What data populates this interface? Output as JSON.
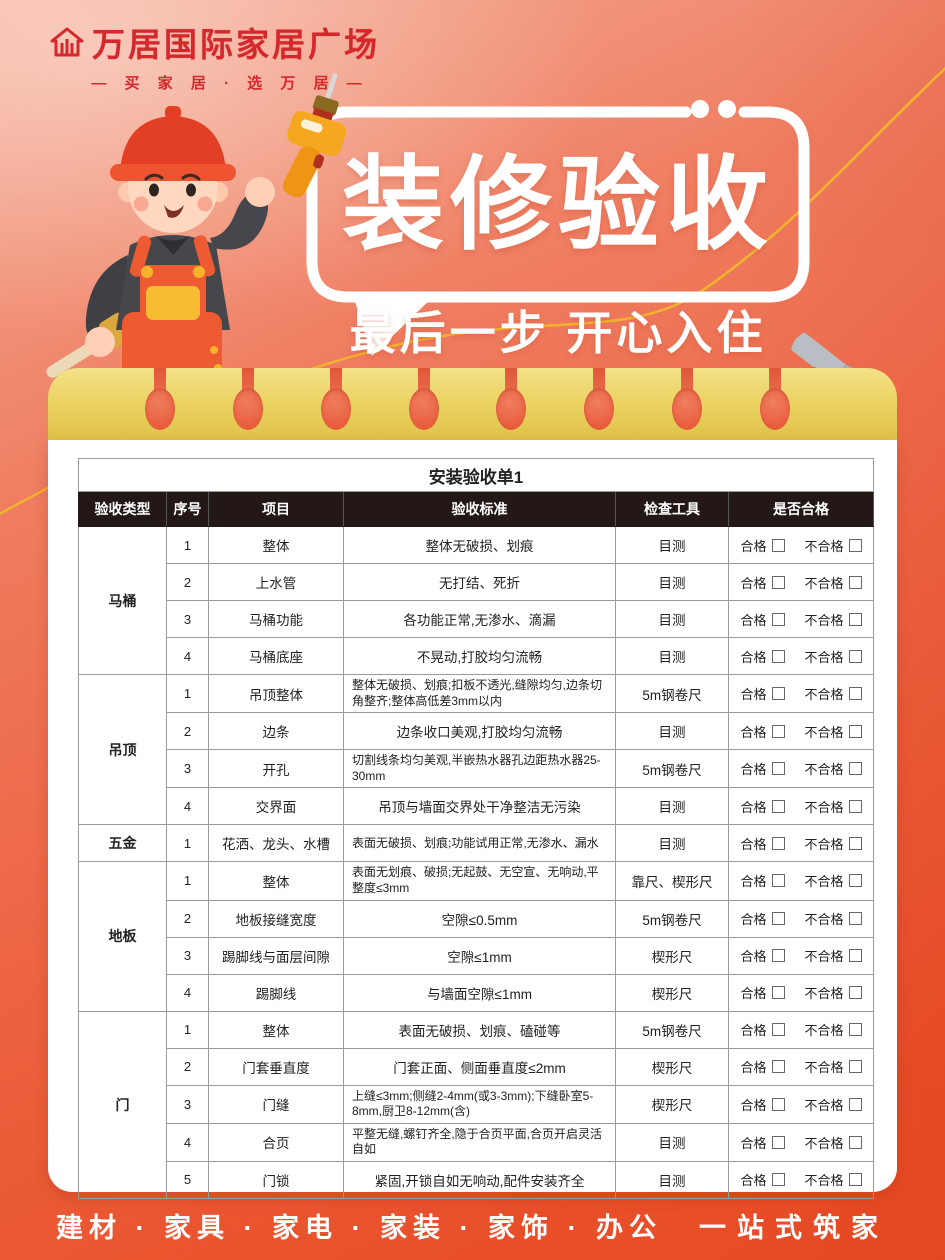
{
  "brand": {
    "name": "万居国际家居广场",
    "tagline": "— 买 家 居 · 选 万 居 —"
  },
  "hero": {
    "title": "装修验收",
    "subtitle": "最后一步 开心入住"
  },
  "table": {
    "title": "安装验收单1",
    "headers": [
      "验收类型",
      "序号",
      "项目",
      "验收标准",
      "检查工具",
      "是否合格"
    ],
    "pass_label": "合格",
    "fail_label": "不合格",
    "groups": [
      {
        "type": "马桶",
        "rows": [
          {
            "no": "1",
            "item": "整体",
            "standard": "整体无破损、划痕",
            "tool": "目测",
            "long": false
          },
          {
            "no": "2",
            "item": "上水管",
            "standard": "无打结、死折",
            "tool": "目测",
            "long": false
          },
          {
            "no": "3",
            "item": "马桶功能",
            "standard": "各功能正常,无渗水、滴漏",
            "tool": "目测",
            "long": false
          },
          {
            "no": "4",
            "item": "马桶底座",
            "standard": "不晃动,打胶均匀流畅",
            "tool": "目测",
            "long": false
          }
        ]
      },
      {
        "type": "吊顶",
        "rows": [
          {
            "no": "1",
            "item": "吊顶整体",
            "standard": "整体无破损、划痕;扣板不透光,缝隙均匀,边条切角整齐;整体高低差3mm以内",
            "tool": "5m钢卷尺",
            "long": true
          },
          {
            "no": "2",
            "item": "边条",
            "standard": "边条收口美观,打胶均匀流畅",
            "tool": "目测",
            "long": false
          },
          {
            "no": "3",
            "item": "开孔",
            "standard": "切割线条均匀美观,半嵌热水器孔边距热水器25-30mm",
            "tool": "5m钢卷尺",
            "long": true
          },
          {
            "no": "4",
            "item": "交界面",
            "standard": "吊顶与墙面交界处干净整洁无污染",
            "tool": "目测",
            "long": false
          }
        ]
      },
      {
        "type": "五金",
        "rows": [
          {
            "no": "1",
            "item": "花洒、龙头、水槽",
            "standard": "表面无破损、划痕;功能试用正常,无渗水、漏水",
            "tool": "目测",
            "long": true
          }
        ]
      },
      {
        "type": "地板",
        "rows": [
          {
            "no": "1",
            "item": "整体",
            "standard": "表面无划痕、破损;无起鼓、无空宣、无响动,平整度≤3mm",
            "tool": "靠尺、楔形尺",
            "long": true
          },
          {
            "no": "2",
            "item": "地板接缝宽度",
            "standard": "空隙≤0.5mm",
            "tool": "5m钢卷尺",
            "long": false
          },
          {
            "no": "3",
            "item": "踢脚线与面层间隙",
            "standard": "空隙≤1mm",
            "tool": "楔形尺",
            "long": false
          },
          {
            "no": "4",
            "item": "踢脚线",
            "standard": "与墙面空隙≤1mm",
            "tool": "楔形尺",
            "long": false
          }
        ]
      },
      {
        "type": "门",
        "rows": [
          {
            "no": "1",
            "item": "整体",
            "standard": "表面无破损、划痕、磕碰等",
            "tool": "5m钢卷尺",
            "long": false
          },
          {
            "no": "2",
            "item": "门套垂直度",
            "standard": "门套正面、侧面垂直度≤2mm",
            "tool": "楔形尺",
            "long": false
          },
          {
            "no": "3",
            "item": "门缝",
            "standard": "上缝≤3mm;侧缝2-4mm(或3-3mm);下缝卧室5-8mm,厨卫8-12mm(含)",
            "tool": "楔形尺",
            "long": true
          },
          {
            "no": "4",
            "item": "合页",
            "standard": "平整无缝,螺钉齐全,隐于合页平面,合页开启灵活自如",
            "tool": "目测",
            "long": true
          },
          {
            "no": "5",
            "item": "门锁",
            "standard": "紧固,开锁自如无响动,配件安装齐全",
            "tool": "目测",
            "long": false
          }
        ]
      }
    ]
  },
  "footer": {
    "categories": "建材 · 家具 · 家电 · 家装 · 家饰 · 办公",
    "slogan": "一站式筑家"
  },
  "colors": {
    "background_accent": "#e84e28",
    "brand_red": "#d4282c",
    "pad_gold": "#e5c94f",
    "curve_yellow": "#f2b32d",
    "header_bg": "#231815",
    "text_dark": "#222222"
  }
}
